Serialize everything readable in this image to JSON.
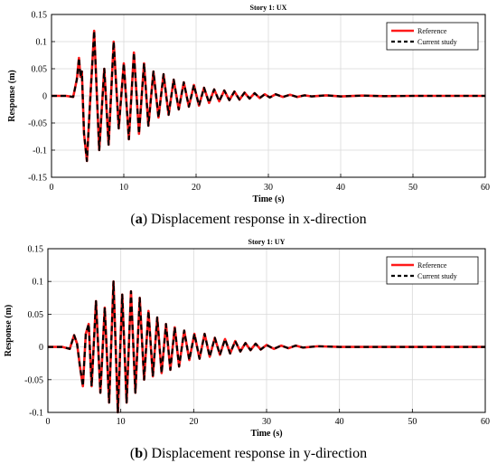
{
  "captions": {
    "a": {
      "label": "a",
      "text": "Displacement response in x-direction"
    },
    "b": {
      "label": "b",
      "text": "Displacement response in y-direction"
    }
  },
  "colors": {
    "reference": "#ff1a1a",
    "current": "#000000",
    "grid": "#d9d9d9"
  },
  "chart_data": [
    {
      "type": "line",
      "title": "Story 1: UX",
      "xlabel": "Time (s)",
      "ylabel": "Response (m)",
      "xlim": [
        0,
        60
      ],
      "ylim": [
        -0.15,
        0.15
      ],
      "xticks": [
        0,
        10,
        20,
        30,
        40,
        50,
        60
      ],
      "yticks": [
        -0.15,
        -0.1,
        -0.05,
        0,
        0.05,
        0.1,
        0.15
      ],
      "ytick_labels": [
        "-0.15",
        "-0.1",
        "-0.05",
        "0",
        "0.05",
        "0.1",
        "0.15"
      ],
      "grid": true,
      "legend_position": "top-right",
      "series": [
        {
          "name": "Reference",
          "x": [
            0,
            2,
            3,
            3.5,
            3.8,
            4.0,
            4.2,
            4.5,
            4.9,
            5.3,
            5.9,
            6.6,
            7.3,
            7.9,
            8.6,
            9.3,
            10.0,
            10.7,
            11.4,
            12.1,
            12.8,
            13.4,
            14.1,
            14.8,
            15.5,
            16.2,
            16.9,
            17.6,
            18.3,
            19.0,
            19.7,
            20.4,
            21.1,
            21.8,
            22.5,
            23.2,
            23.9,
            24.6,
            25.3,
            26.0,
            26.7,
            27.4,
            28.1,
            28.8,
            29.5,
            30.2,
            31.0,
            32.0,
            33.0,
            34.0,
            35.0,
            36.0,
            38.0,
            40.0,
            43.0,
            46.0,
            50.0,
            55.0,
            60.0
          ],
          "values": [
            0,
            0,
            -0.002,
            0.03,
            0.07,
            0.035,
            0.045,
            -0.07,
            -0.12,
            -0.02,
            0.12,
            -0.1,
            0.05,
            -0.09,
            0.1,
            -0.06,
            0.06,
            -0.08,
            0.08,
            -0.07,
            0.06,
            -0.055,
            0.045,
            -0.04,
            0.04,
            -0.035,
            0.03,
            -0.025,
            0.025,
            -0.02,
            0.02,
            -0.018,
            0.015,
            -0.013,
            0.012,
            -0.01,
            0.01,
            -0.008,
            0.008,
            -0.007,
            0.006,
            -0.005,
            0.005,
            -0.004,
            0.003,
            -0.003,
            0.003,
            -0.002,
            0.002,
            -0.002,
            0.001,
            -0.001,
            0.001,
            -0.001,
            0.0005,
            -0.0005,
            0,
            0,
            0
          ]
        },
        {
          "name": "Current study",
          "x": [
            0,
            2,
            3,
            3.5,
            3.8,
            4.0,
            4.2,
            4.5,
            4.9,
            5.3,
            5.9,
            6.6,
            7.3,
            7.9,
            8.6,
            9.3,
            10.0,
            10.7,
            11.4,
            12.1,
            12.8,
            13.4,
            14.1,
            14.8,
            15.5,
            16.2,
            16.9,
            17.6,
            18.3,
            19.0,
            19.7,
            20.4,
            21.1,
            21.8,
            22.5,
            23.2,
            23.9,
            24.6,
            25.3,
            26.0,
            26.7,
            27.4,
            28.1,
            28.8,
            29.5,
            30.2,
            31.0,
            32.0,
            33.0,
            34.0,
            35.0,
            36.0,
            38.0,
            40.0,
            43.0,
            46.0,
            50.0,
            55.0,
            60.0
          ],
          "values": [
            0,
            0,
            -0.002,
            0.03,
            0.07,
            0.035,
            0.045,
            -0.07,
            -0.12,
            -0.02,
            0.12,
            -0.1,
            0.05,
            -0.09,
            0.1,
            -0.06,
            0.06,
            -0.08,
            0.08,
            -0.07,
            0.06,
            -0.055,
            0.045,
            -0.04,
            0.04,
            -0.035,
            0.03,
            -0.025,
            0.025,
            -0.02,
            0.02,
            -0.018,
            0.015,
            -0.013,
            0.012,
            -0.01,
            0.01,
            -0.008,
            0.008,
            -0.007,
            0.006,
            -0.005,
            0.005,
            -0.004,
            0.003,
            -0.003,
            0.003,
            -0.002,
            0.002,
            -0.002,
            0.001,
            -0.001,
            0.001,
            -0.001,
            0.0005,
            -0.0005,
            0,
            0,
            0
          ]
        }
      ]
    },
    {
      "type": "line",
      "title": "Story 1: UY",
      "xlabel": "Time (s)",
      "ylabel": "Response (m)",
      "xlim": [
        0,
        60
      ],
      "ylim": [
        -0.1,
        0.15
      ],
      "xticks": [
        0,
        10,
        20,
        30,
        40,
        50,
        60
      ],
      "yticks": [
        -0.1,
        -0.05,
        0,
        0.05,
        0.1,
        0.15
      ],
      "ytick_labels": [
        "-0.1",
        "-0.05",
        "0",
        "0.05",
        "0.1",
        "0.15"
      ],
      "grid": true,
      "legend_position": "top-right",
      "series": [
        {
          "name": "Reference",
          "x": [
            0,
            2,
            3,
            3.6,
            4.0,
            4.4,
            4.8,
            5.2,
            5.6,
            6.0,
            6.6,
            7.2,
            7.8,
            8.4,
            9.0,
            9.6,
            10.2,
            10.8,
            11.4,
            12.0,
            12.6,
            13.2,
            13.8,
            14.4,
            15.0,
            15.6,
            16.2,
            16.8,
            17.4,
            18.0,
            18.7,
            19.4,
            20.1,
            20.8,
            21.5,
            22.2,
            22.9,
            23.6,
            24.3,
            25.0,
            25.7,
            26.4,
            27.1,
            27.8,
            28.5,
            29.2,
            30.0,
            31.0,
            32.0,
            33.0,
            34.0,
            35.0,
            37.0,
            40.0,
            45.0,
            50.0,
            55.0,
            60.0
          ],
          "values": [
            0,
            0,
            -0.003,
            0.018,
            0.005,
            -0.03,
            -0.06,
            0.02,
            0.035,
            -0.06,
            0.07,
            -0.07,
            0.06,
            -0.085,
            0.1,
            -0.1,
            0.08,
            -0.085,
            0.085,
            -0.07,
            0.075,
            -0.05,
            0.055,
            -0.045,
            0.045,
            -0.04,
            0.035,
            -0.035,
            0.03,
            -0.03,
            0.025,
            -0.02,
            0.02,
            -0.018,
            0.02,
            -0.015,
            0.014,
            -0.012,
            0.012,
            -0.01,
            0.009,
            -0.007,
            0.006,
            -0.005,
            0.005,
            -0.004,
            0.003,
            -0.003,
            0.002,
            -0.002,
            0.002,
            -0.001,
            0.001,
            0,
            0,
            0,
            0,
            0
          ]
        },
        {
          "name": "Current study",
          "x": [
            0,
            2,
            3,
            3.6,
            4.0,
            4.4,
            4.8,
            5.2,
            5.6,
            6.0,
            6.6,
            7.2,
            7.8,
            8.4,
            9.0,
            9.6,
            10.2,
            10.8,
            11.4,
            12.0,
            12.6,
            13.2,
            13.8,
            14.4,
            15.0,
            15.6,
            16.2,
            16.8,
            17.4,
            18.0,
            18.7,
            19.4,
            20.1,
            20.8,
            21.5,
            22.2,
            22.9,
            23.6,
            24.3,
            25.0,
            25.7,
            26.4,
            27.1,
            27.8,
            28.5,
            29.2,
            30.0,
            31.0,
            32.0,
            33.0,
            34.0,
            35.0,
            37.0,
            40.0,
            45.0,
            50.0,
            55.0,
            60.0
          ],
          "values": [
            0,
            0,
            -0.003,
            0.018,
            0.005,
            -0.03,
            -0.06,
            0.02,
            0.035,
            -0.06,
            0.07,
            -0.07,
            0.06,
            -0.085,
            0.1,
            -0.1,
            0.08,
            -0.085,
            0.085,
            -0.07,
            0.075,
            -0.05,
            0.055,
            -0.045,
            0.045,
            -0.04,
            0.035,
            -0.035,
            0.03,
            -0.03,
            0.025,
            -0.02,
            0.02,
            -0.018,
            0.02,
            -0.015,
            0.014,
            -0.012,
            0.012,
            -0.01,
            0.009,
            -0.007,
            0.006,
            -0.005,
            0.005,
            -0.004,
            0.003,
            -0.003,
            0.002,
            -0.002,
            0.002,
            -0.001,
            0.001,
            0,
            0,
            0,
            0,
            0
          ]
        }
      ]
    }
  ]
}
